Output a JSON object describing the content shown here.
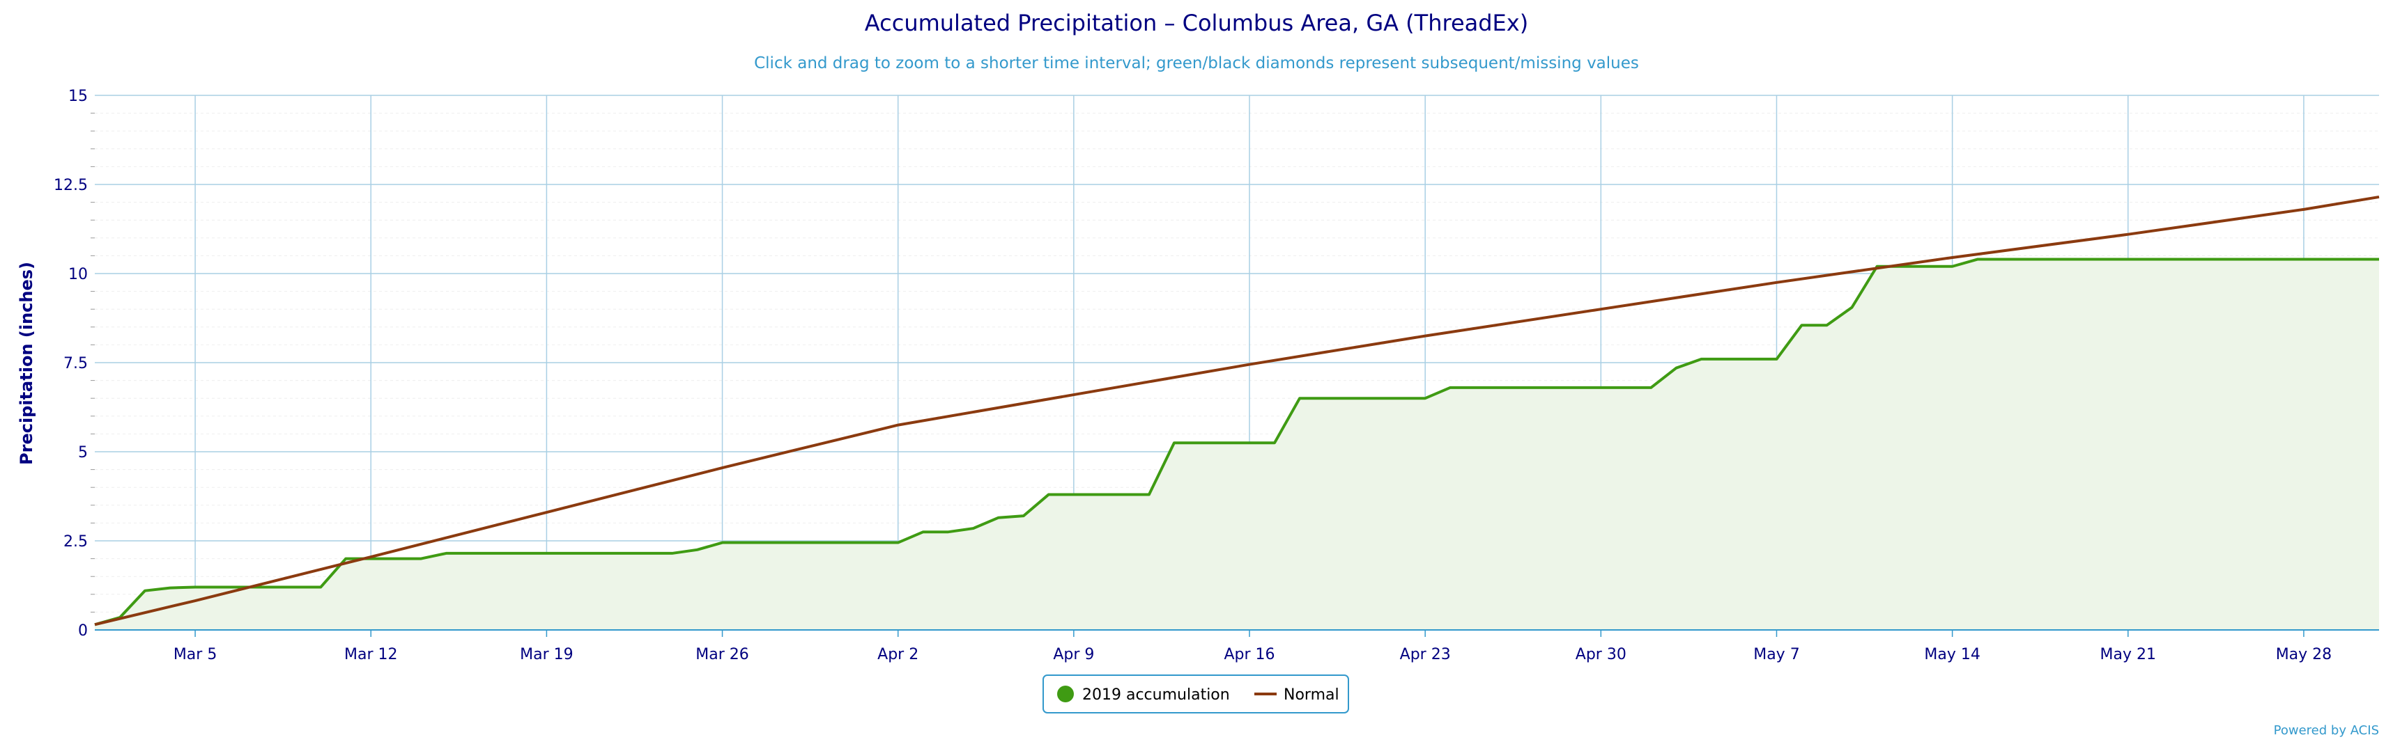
{
  "chart_data": {
    "type": "area",
    "title": "Accumulated Precipitation – Columbus Area, GA (ThreadEx)",
    "subtitle": "Click and drag to zoom to a shorter time interval; green/black diamonds represent subsequent/missing values",
    "ylabel": "Precipitation (inches)",
    "ylim": [
      0,
      15
    ],
    "yticks": [
      "0",
      "2.5",
      "5",
      "7.5",
      "10",
      "12.5",
      "15"
    ],
    "xlim": [
      "2019-03-01",
      "2019-05-31"
    ],
    "xticks": [
      {
        "label": "Mar 5",
        "date": "2019-03-05"
      },
      {
        "label": "Mar 12",
        "date": "2019-03-12"
      },
      {
        "label": "Mar 19",
        "date": "2019-03-19"
      },
      {
        "label": "Mar 26",
        "date": "2019-03-26"
      },
      {
        "label": "Apr 2",
        "date": "2019-04-02"
      },
      {
        "label": "Apr 9",
        "date": "2019-04-09"
      },
      {
        "label": "Apr 16",
        "date": "2019-04-16"
      },
      {
        "label": "Apr 23",
        "date": "2019-04-23"
      },
      {
        "label": "Apr 30",
        "date": "2019-04-30"
      },
      {
        "label": "May 7",
        "date": "2019-05-07"
      },
      {
        "label": "May 14",
        "date": "2019-05-14"
      },
      {
        "label": "May 21",
        "date": "2019-05-21"
      },
      {
        "label": "May 28",
        "date": "2019-05-28"
      }
    ],
    "grid": true,
    "legend_position": "bottom-center",
    "series": [
      {
        "name": "2019 accumulation",
        "color": "#3f9b13",
        "fill": "#edf5e8",
        "marker": "circle",
        "points": [
          [
            "2019-03-01",
            0.15
          ],
          [
            "2019-03-02",
            0.35
          ],
          [
            "2019-03-03",
            1.1
          ],
          [
            "2019-03-04",
            1.18
          ],
          [
            "2019-03-05",
            1.2
          ],
          [
            "2019-03-10",
            1.2
          ],
          [
            "2019-03-11",
            2.0
          ],
          [
            "2019-03-14",
            2.0
          ],
          [
            "2019-03-15",
            2.15
          ],
          [
            "2019-03-24",
            2.15
          ],
          [
            "2019-03-25",
            2.25
          ],
          [
            "2019-03-26",
            2.45
          ],
          [
            "2019-04-02",
            2.45
          ],
          [
            "2019-04-03",
            2.75
          ],
          [
            "2019-04-04",
            2.75
          ],
          [
            "2019-04-05",
            2.85
          ],
          [
            "2019-04-06",
            3.15
          ],
          [
            "2019-04-07",
            3.2
          ],
          [
            "2019-04-08",
            3.8
          ],
          [
            "2019-04-12",
            3.8
          ],
          [
            "2019-04-13",
            5.25
          ],
          [
            "2019-04-17",
            5.25
          ],
          [
            "2019-04-18",
            6.5
          ],
          [
            "2019-04-23",
            6.5
          ],
          [
            "2019-04-24",
            6.8
          ],
          [
            "2019-05-02",
            6.8
          ],
          [
            "2019-05-03",
            7.35
          ],
          [
            "2019-05-04",
            7.6
          ],
          [
            "2019-05-07",
            7.6
          ],
          [
            "2019-05-08",
            8.55
          ],
          [
            "2019-05-09",
            8.55
          ],
          [
            "2019-05-10",
            9.05
          ],
          [
            "2019-05-11",
            10.2
          ],
          [
            "2019-05-14",
            10.2
          ],
          [
            "2019-05-15",
            10.4
          ],
          [
            "2019-05-31",
            10.4
          ]
        ]
      },
      {
        "name": "Normal",
        "color": "#8b3a0f",
        "marker": "line",
        "points": [
          [
            "2019-03-01",
            0.15
          ],
          [
            "2019-03-05",
            0.82
          ],
          [
            "2019-03-12",
            2.05
          ],
          [
            "2019-03-19",
            3.3
          ],
          [
            "2019-03-26",
            4.55
          ],
          [
            "2019-04-02",
            5.75
          ],
          [
            "2019-04-09",
            6.6
          ],
          [
            "2019-04-16",
            7.45
          ],
          [
            "2019-04-23",
            8.25
          ],
          [
            "2019-04-30",
            9.0
          ],
          [
            "2019-05-07",
            9.75
          ],
          [
            "2019-05-14",
            10.45
          ],
          [
            "2019-05-21",
            11.1
          ],
          [
            "2019-05-28",
            11.8
          ],
          [
            "2019-05-31",
            12.15
          ]
        ]
      }
    ]
  },
  "credit": "Powered by ACIS"
}
